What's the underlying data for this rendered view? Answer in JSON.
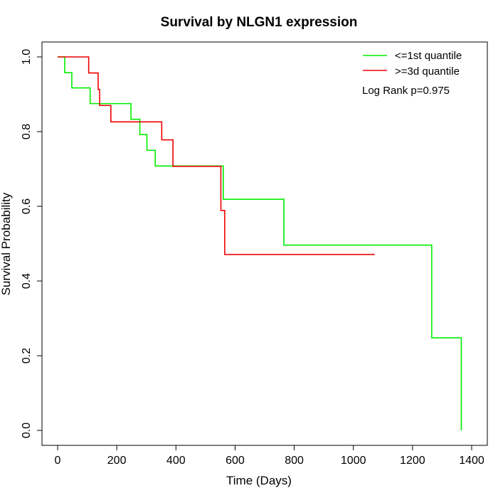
{
  "chart_data": {
    "type": "line",
    "title": "Survival by NLGN1 expression",
    "xlabel": "Time (Days)",
    "ylabel": "Survival Probability",
    "xlim": [
      0,
      1400
    ],
    "ylim": [
      0,
      1
    ],
    "x_ticks": [
      0,
      200,
      400,
      600,
      800,
      1000,
      1200,
      1400
    ],
    "y_ticks": [
      0.0,
      0.2,
      0.4,
      0.6,
      0.8,
      1.0
    ],
    "x_tick_labels": [
      "0",
      "200",
      "400",
      "600",
      "800",
      "1000",
      "1200",
      "1400"
    ],
    "y_tick_labels": [
      "0.0",
      "0.2",
      "0.4",
      "0.6",
      "0.8",
      "1.0"
    ],
    "grid": false,
    "legend_position": "top-right",
    "annotation": "Log Rank p=0.975",
    "series": [
      {
        "name": "<=1st quantile",
        "color": "#00ee00",
        "step_points": [
          [
            0,
            1.0
          ],
          [
            24,
            0.958
          ],
          [
            48,
            0.917
          ],
          [
            110,
            0.875
          ],
          [
            248,
            0.833
          ],
          [
            278,
            0.792
          ],
          [
            302,
            0.75
          ],
          [
            330,
            0.708
          ],
          [
            560,
            0.619
          ],
          [
            765,
            0.496
          ],
          [
            1265,
            0.248
          ],
          [
            1365,
            0.0
          ]
        ],
        "end_x": 1365
      },
      {
        "name": ">=3d quantile",
        "color": "#ee0000",
        "step_points": [
          [
            0,
            1.0
          ],
          [
            105,
            0.957
          ],
          [
            137,
            0.913
          ],
          [
            142,
            0.87
          ],
          [
            180,
            0.826
          ],
          [
            352,
            0.778
          ],
          [
            390,
            0.707
          ],
          [
            552,
            0.589
          ],
          [
            565,
            0.471
          ]
        ],
        "end_x": 1072
      }
    ]
  }
}
